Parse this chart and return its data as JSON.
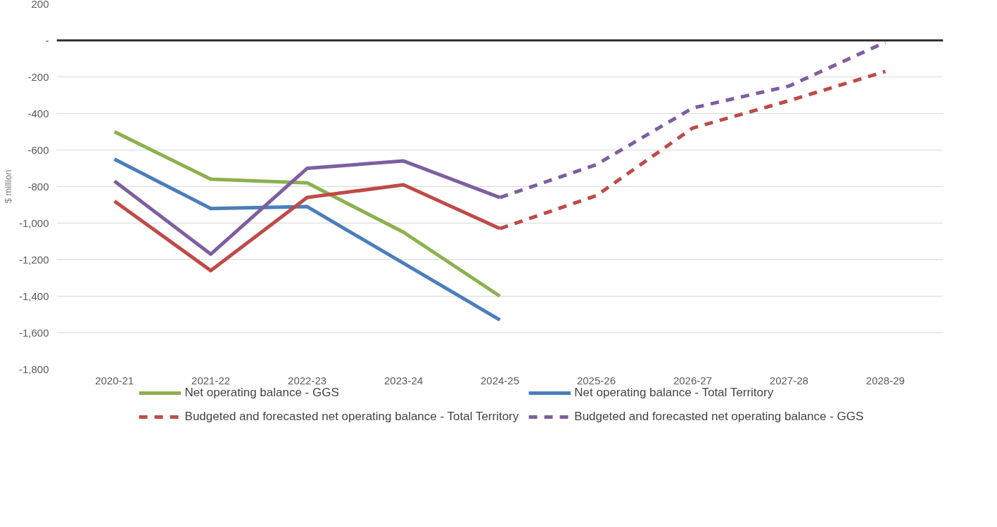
{
  "chart_data": {
    "type": "line",
    "ylabel": "$ million",
    "categories": [
      "2020-21",
      "2021-22",
      "2022-23",
      "2023-24",
      "2024-25",
      "2025-26",
      "2026-27",
      "2027-28",
      "2028-29"
    ],
    "ylim": [
      -1800,
      200
    ],
    "yticks": [
      200,
      {
        "value": 0,
        "label": "-"
      },
      -200,
      -400,
      -600,
      -800,
      {
        "value": -1000,
        "label": "-1,000"
      },
      {
        "value": -1200,
        "label": "-1,200"
      },
      {
        "value": -1400,
        "label": "-1,400"
      },
      {
        "value": -1600,
        "label": "-1,600"
      },
      {
        "value": -1800,
        "label": "-1,800"
      }
    ],
    "grid": "y",
    "legend": "bottom",
    "line_style": "solid",
    "ref_lines": [
      {
        "axis": "y",
        "value": 0,
        "label": null,
        "color": "#333333"
      }
    ],
    "series": [
      {
        "name": "Net operating balance - GGS",
        "color": "#8db04f",
        "values": [
          -500,
          -760,
          -780,
          -1050,
          -1400,
          null,
          null,
          null,
          null
        ]
      },
      {
        "name": "Net operating balance - Total Territory",
        "color": "#4a7ebb",
        "values": [
          -650,
          -920,
          -910,
          -1220,
          -1530,
          null,
          null,
          null,
          null
        ]
      },
      {
        "color": "#be4b48",
        "values": [
          -880,
          -1260,
          -860,
          -790,
          -1030,
          null,
          null,
          null,
          null
        ]
      },
      {
        "color": "#7d5fa0",
        "values": [
          -770,
          -1170,
          -700,
          -660,
          -860,
          null,
          null,
          null,
          null
        ]
      },
      {
        "name": "Budgeted and forecasted net operating balance - Total Territory",
        "color": "#be4b48",
        "line_style": "dashed",
        "values": [
          null,
          null,
          null,
          null,
          -1030,
          -850,
          -480,
          -330,
          -170
        ]
      },
      {
        "name": "Budgeted and forecasted net operating balance - GGS",
        "color": "#7d5fa0",
        "line_style": "dashed",
        "values": [
          null,
          null,
          null,
          null,
          -860,
          -680,
          -370,
          -250,
          -10
        ]
      }
    ]
  }
}
